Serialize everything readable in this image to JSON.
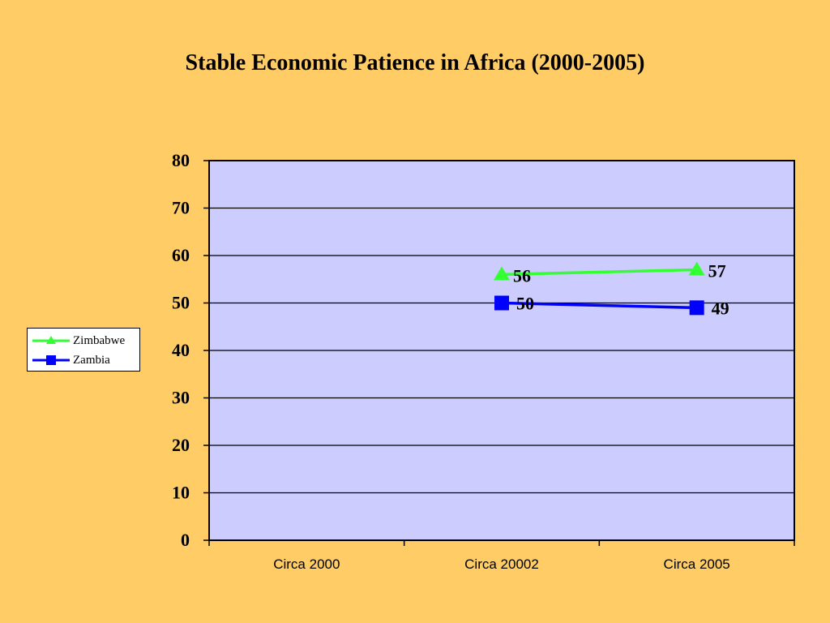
{
  "chart_data": {
    "type": "line",
    "title": "Stable Economic Patience in Africa (2000-2005)",
    "xlabel": "",
    "ylabel": "",
    "categories": [
      "Circa 2000",
      "Circa 20002",
      "Circa 2005"
    ],
    "ylim": [
      0,
      80
    ],
    "yticks": [
      "0",
      "10",
      "20",
      "30",
      "40",
      "50",
      "60",
      "70",
      "80"
    ],
    "grid": true,
    "legend_position": "left",
    "plot_background": "#CCCCFF",
    "series": [
      {
        "name": "Zimbabwe",
        "color": "#33FF33",
        "marker": "triangle",
        "values": [
          null,
          56,
          57
        ],
        "labels": [
          "",
          "56",
          "57"
        ]
      },
      {
        "name": "Zambia",
        "color": "#0000FF",
        "marker": "square",
        "values": [
          null,
          50,
          49
        ],
        "labels": [
          "",
          "50",
          "49"
        ]
      }
    ]
  }
}
